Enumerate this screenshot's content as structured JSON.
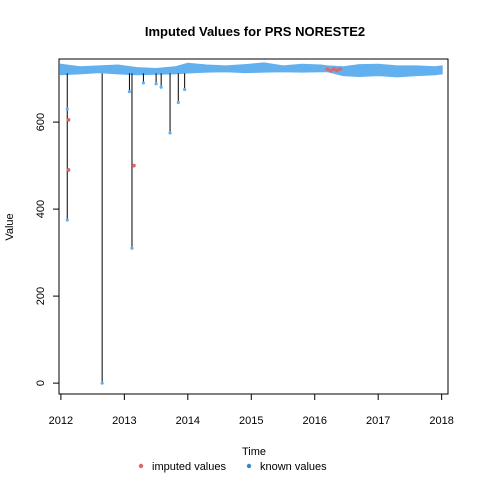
{
  "chart_data": {
    "type": "line",
    "title": "Imputed Values for  PRS NORESTE2",
    "xlabel": "Time",
    "ylabel": "Value",
    "xlim": [
      2011.97,
      2018.1
    ],
    "ylim": [
      -25,
      745
    ],
    "xticks": [
      2012,
      2013,
      2014,
      2015,
      2016,
      2017,
      2018
    ],
    "xtick_labels": [
      "2012",
      "2013",
      "2014",
      "2015",
      "2016",
      "2017",
      "2018"
    ],
    "yticks": [
      0,
      200,
      400,
      600
    ],
    "ytick_labels": [
      "0",
      "200",
      "400",
      "600"
    ],
    "grid": false,
    "legend_position": "bottom",
    "legend": [
      {
        "label": "imputed values",
        "color": "#e06666"
      },
      {
        "label": "known values",
        "color": "#3d85c6"
      }
    ],
    "known_band": {
      "x": [
        2012.0,
        2012.3,
        2012.6,
        2012.9,
        2013.2,
        2013.5,
        2013.8,
        2014.0,
        2014.3,
        2014.6,
        2014.9,
        2015.2,
        2015.5,
        2015.8,
        2016.1,
        2016.2,
        2016.45,
        2016.7,
        2017.0,
        2017.3,
        2017.6,
        2017.9,
        2018.0
      ],
      "low": [
        710,
        712,
        715,
        712,
        710,
        711,
        712,
        714,
        716,
        717,
        715,
        716,
        717,
        716,
        717,
        717,
        708,
        706,
        708,
        705,
        708,
        710,
        712
      ],
      "high": [
        732,
        726,
        728,
        730,
        724,
        722,
        726,
        734,
        730,
        728,
        731,
        735,
        728,
        732,
        730,
        728,
        726,
        731,
        732,
        728,
        728,
        726,
        728
      ]
    },
    "drops": [
      {
        "x": 2012.1,
        "y": 375
      },
      {
        "x": 2012.65,
        "y": 0
      },
      {
        "x": 2013.08,
        "y": 670
      },
      {
        "x": 2013.12,
        "y": 310
      },
      {
        "x": 2013.3,
        "y": 690
      },
      {
        "x": 2013.5,
        "y": 688
      },
      {
        "x": 2013.58,
        "y": 680
      },
      {
        "x": 2013.72,
        "y": 575
      },
      {
        "x": 2013.85,
        "y": 645
      },
      {
        "x": 2013.95,
        "y": 675
      }
    ],
    "imputed_points": [
      {
        "x": 2012.12,
        "y": 605
      },
      {
        "x": 2012.12,
        "y": 490
      },
      {
        "x": 2013.15,
        "y": 500
      },
      {
        "x": 2016.2,
        "y": 722
      },
      {
        "x": 2016.25,
        "y": 718
      },
      {
        "x": 2016.3,
        "y": 722
      },
      {
        "x": 2016.35,
        "y": 719
      },
      {
        "x": 2016.4,
        "y": 722
      }
    ],
    "known_points": [
      {
        "x": 2012.1,
        "y": 630
      }
    ]
  }
}
